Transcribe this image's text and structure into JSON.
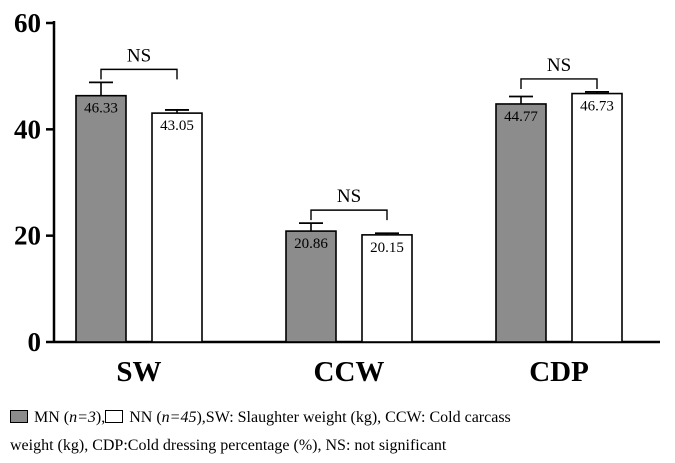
{
  "chart_data": {
    "type": "bar",
    "categories": [
      "SW",
      "CCW",
      "CDP"
    ],
    "series": [
      {
        "name": "MN",
        "values": [
          46.33,
          20.86,
          44.77
        ],
        "errors": [
          2.5,
          1.5,
          1.4
        ],
        "color": "#8c8c8c"
      },
      {
        "name": "NN",
        "values": [
          43.05,
          20.15,
          46.73
        ],
        "errors": [
          0.6,
          0.3,
          0.3
        ],
        "color": "#ffffff"
      }
    ],
    "value_labels": [
      [
        "46.33",
        "20.86",
        "44.77"
      ],
      [
        "43.05",
        "20.15",
        "46.73"
      ]
    ],
    "yticks": [
      "0",
      "20",
      "40",
      "60"
    ],
    "ylim": [
      0,
      60
    ],
    "significance": [
      "NS",
      "NS",
      "NS"
    ],
    "grid": false
  },
  "legend": {
    "mn_label": "MN",
    "mn_n": "n=3",
    "nn_label": "NN",
    "nn_n": "n=45",
    "rest_line1": "SW: Slaughter  weight (kg), CCW: Cold  carcass",
    "line2": "weight (kg), CDP:Cold dressing  percentage (%), NS: not significant"
  }
}
